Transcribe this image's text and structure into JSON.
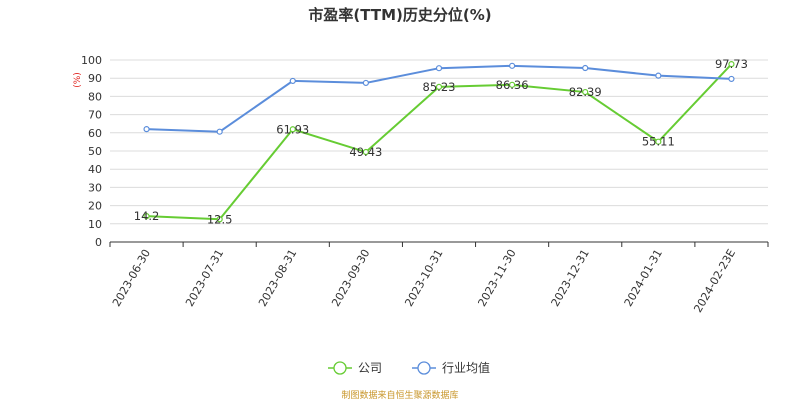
{
  "chart_data": {
    "type": "line",
    "title": "市盈率(TTM)历史分位(%)",
    "ylabel": "(%)",
    "categories": [
      "2023-06-30",
      "2023-07-31",
      "2023-08-31",
      "2023-09-30",
      "2023-10-31",
      "2023-11-30",
      "2023-12-31",
      "2024-01-31",
      "2024-02-23E"
    ],
    "yticks": [
      0,
      10,
      20,
      30,
      40,
      50,
      60,
      70,
      80,
      90,
      100
    ],
    "ylim": [
      0,
      100
    ],
    "grid": true,
    "legend_position": "bottom-center",
    "series": [
      {
        "name": "公司",
        "color": "#66cc33",
        "values": [
          14.2,
          12.5,
          61.93,
          49.43,
          85.23,
          86.36,
          82.39,
          55.11,
          97.73
        ],
        "labels": [
          "14.2",
          "12.5",
          "61.93",
          "49.43",
          "85.23",
          "86.36",
          "82.39",
          "55.11",
          "97.73"
        ]
      },
      {
        "name": "行业均值",
        "color": "#5b8ddb",
        "values": [
          62.0,
          60.6,
          88.5,
          87.4,
          95.5,
          96.8,
          95.6,
          91.4,
          89.6
        ]
      }
    ]
  },
  "footer": {
    "source": "制图数据来自恒生聚源数据库"
  }
}
